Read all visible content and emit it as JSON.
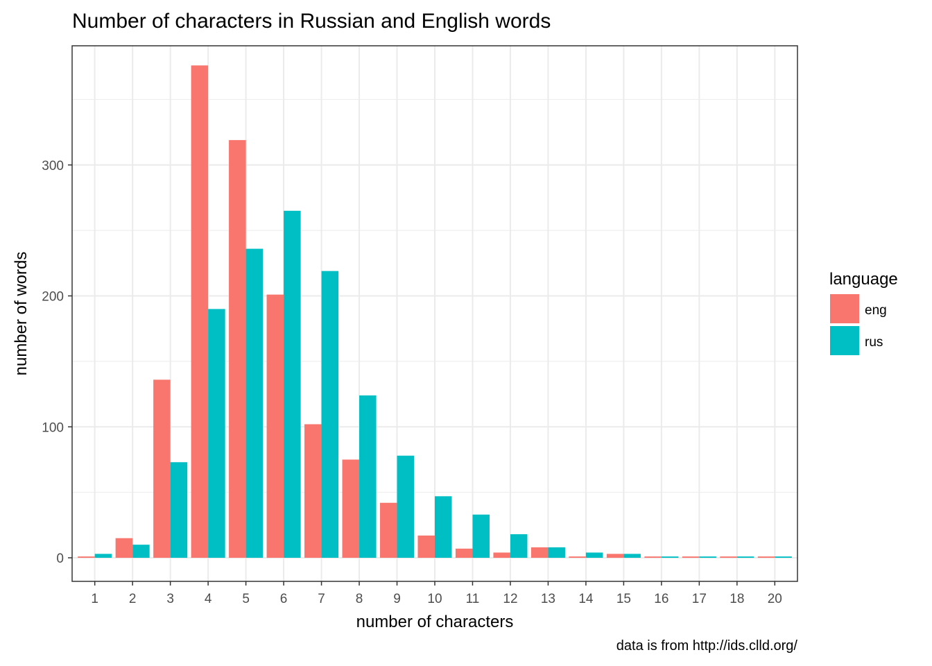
{
  "chart_data": {
    "type": "bar",
    "title": "Number of characters in Russian and English words",
    "xlabel": "number of characters",
    "ylabel": "number of words",
    "caption": "data is from http://ids.clld.org/",
    "legend_title": "language",
    "legend_position": "right",
    "grid": true,
    "ylim": [
      -18,
      391
    ],
    "yticks": [
      0,
      100,
      200,
      300
    ],
    "categories": [
      "1",
      "2",
      "3",
      "4",
      "5",
      "6",
      "7",
      "8",
      "9",
      "10",
      "11",
      "12",
      "13",
      "14",
      "15",
      "16",
      "17",
      "18",
      "20"
    ],
    "series": [
      {
        "name": "eng",
        "color": "#F8766D",
        "values": [
          1,
          15,
          136,
          376,
          319,
          201,
          102,
          75,
          42,
          17,
          7,
          4,
          8,
          1,
          3,
          1,
          1,
          1,
          1
        ]
      },
      {
        "name": "rus",
        "color": "#00BFC4",
        "values": [
          3,
          10,
          73,
          190,
          236,
          265,
          219,
          124,
          78,
          47,
          33,
          18,
          8,
          4,
          3,
          1,
          1,
          1,
          1
        ]
      }
    ]
  }
}
